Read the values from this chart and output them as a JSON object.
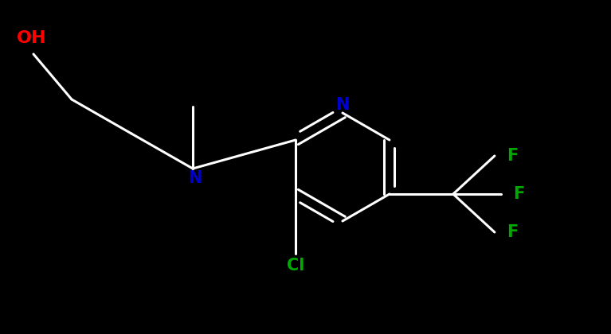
{
  "bg_color": "#000000",
  "bond_color": "#ffffff",
  "bond_width": 2.2,
  "oh_color": "#ff0000",
  "n_color": "#0000cc",
  "cl_color": "#00aa00",
  "f_color": "#00aa00",
  "figsize": [
    7.67,
    4.2
  ],
  "dpi": 100,
  "xlim": [
    0,
    7.67
  ],
  "ylim": [
    0,
    4.2
  ]
}
